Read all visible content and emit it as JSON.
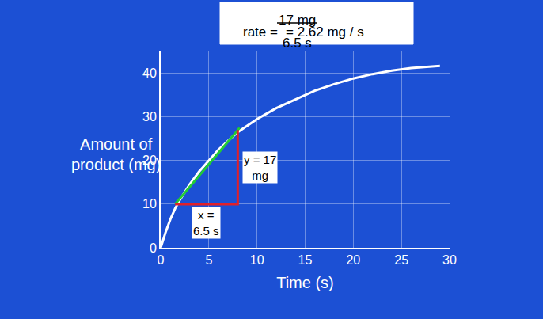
{
  "chart_data": {
    "type": "line",
    "title": {
      "lhs": "rate =",
      "numerator": "17 mg",
      "denominator": "6.5 s",
      "rhs": "= 2.62 mg / s"
    },
    "x_label": "Time (s)",
    "y_label": "Amount of product (mg)",
    "xlim": [
      0,
      30
    ],
    "xticks": [
      0,
      5,
      10,
      15,
      20,
      25,
      30
    ],
    "ylim": [
      0,
      45
    ],
    "yticks": [
      0,
      10,
      20,
      30,
      40
    ],
    "grid": true,
    "series": [
      {
        "color": "#ffffff",
        "x": [
          0,
          0.5,
          1,
          1.5,
          2,
          3,
          4,
          5,
          6,
          7,
          8,
          9,
          10,
          12,
          14,
          16,
          18,
          20,
          22,
          24,
          26,
          28,
          29
        ],
        "values": [
          0,
          3.5,
          6.5,
          9,
          11,
          14.5,
          17.5,
          20,
          22.5,
          24.5,
          26.5,
          28,
          29.5,
          32,
          34,
          36,
          37.5,
          38.8,
          39.8,
          40.6,
          41.2,
          41.6,
          41.7
        ]
      },
      {
        "color": "#22cc33",
        "x": [
          1.5,
          8.2
        ],
        "values": [
          10,
          27.5
        ]
      },
      {
        "color": "#e0202a",
        "x": [
          1.5,
          8,
          8
        ],
        "values": [
          10,
          10,
          27
        ]
      }
    ],
    "annotations": [
      "x = 6.5 s",
      "y = 17 mg"
    ]
  }
}
